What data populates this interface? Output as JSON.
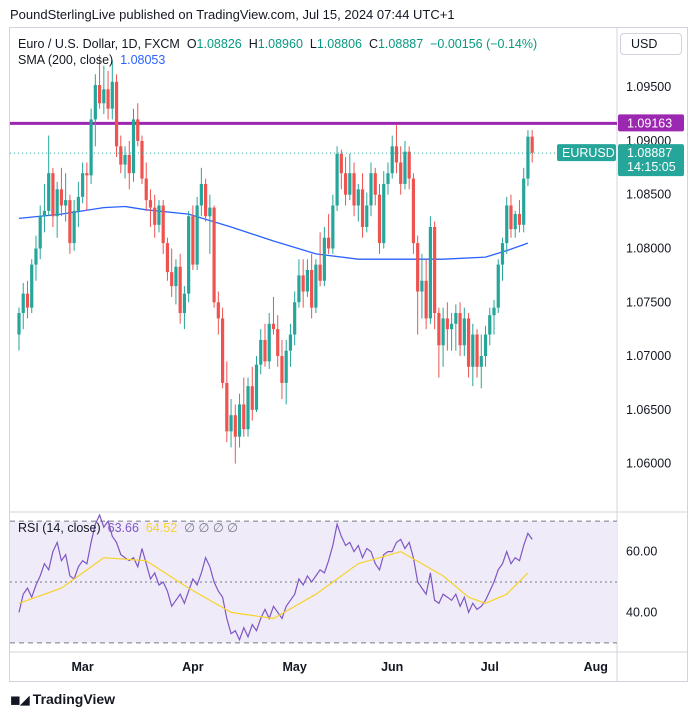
{
  "publisher": "PoundSterlingLive published on TradingView.com, Jul 15, 2024 07:44 UTC+1",
  "legend": {
    "symbol": "Euro / U.S. Dollar, 1D, FXCM",
    "o_label": "O",
    "open": "1.08826",
    "h_label": "H",
    "high": "1.08960",
    "l_label": "L",
    "low": "1.08806",
    "c_label": "C",
    "close": "1.08887",
    "change": "−0.00156 (−0.14%)",
    "sma_label": "SMA (200, close)",
    "sma_value": "1.08053"
  },
  "rsi_legend": {
    "label": "RSI (14, close)",
    "rsi": "63.66",
    "ma": "64.52",
    "zeros": "∅ ∅ ∅ ∅"
  },
  "currency_button": "USD",
  "branding": "TradingView",
  "colors": {
    "up": "#26a69a",
    "down": "#ef5350",
    "sma": "#2962ff",
    "hline": "#9c27b0",
    "rsi": "#7e57c2",
    "rsi_ma": "#f7d32a",
    "rsi_band": "#f0ebf9"
  },
  "chart_data": [
    {
      "type": "candlestick",
      "title": "Euro / U.S. Dollar, 1D, FXCM",
      "ylim": [
        1.0555,
        1.1005
      ],
      "y_ticks": [
        "1.06000",
        "1.06500",
        "1.07000",
        "1.07500",
        "1.08000",
        "1.08500",
        "1.09000",
        "1.09500"
      ],
      "x_tick_labels": [
        "Mar",
        "Apr",
        "May",
        "Jun",
        "Jul",
        "Aug"
      ],
      "x_ticks": [
        15,
        41,
        65,
        88,
        111,
        136
      ],
      "x_range": [
        0,
        141
      ],
      "horizontal_line": {
        "value": 1.09163,
        "label": "1.09163"
      },
      "last_price": {
        "symbol": "EURUSD",
        "value": "1.08887",
        "countdown": "14:15:05"
      },
      "candles": [
        [
          0,
          1.072,
          1.0745,
          1.0705,
          1.074
        ],
        [
          1,
          1.074,
          1.0768,
          1.0725,
          1.0758
        ],
        [
          2,
          1.0758,
          1.077,
          1.0735,
          1.0745
        ],
        [
          3,
          1.0745,
          1.079,
          1.074,
          1.0785
        ],
        [
          4,
          1.0785,
          1.0812,
          1.077,
          1.08
        ],
        [
          5,
          1.08,
          1.084,
          1.079,
          1.083
        ],
        [
          6,
          1.083,
          1.086,
          1.0815,
          1.0835
        ],
        [
          7,
          1.0835,
          1.0905,
          1.083,
          1.087
        ],
        [
          8,
          1.087,
          1.0875,
          1.082,
          1.083
        ],
        [
          9,
          1.083,
          1.0862,
          1.081,
          1.0855
        ],
        [
          10,
          1.0855,
          1.0875,
          1.083,
          1.084
        ],
        [
          11,
          1.084,
          1.087,
          1.0825,
          1.0845
        ],
        [
          12,
          1.0845,
          1.085,
          1.0795,
          1.0805
        ],
        [
          13,
          1.0805,
          1.0845,
          1.0798,
          1.0835
        ],
        [
          14,
          1.0835,
          1.0862,
          1.082,
          1.0848
        ],
        [
          15,
          1.0848,
          1.088,
          1.0842,
          1.087
        ],
        [
          16,
          1.087,
          1.088,
          1.0835,
          1.0868
        ],
        [
          17,
          1.0868,
          1.093,
          1.086,
          1.092
        ],
        [
          18,
          1.092,
          1.0962,
          1.0895,
          1.0952
        ],
        [
          19,
          1.0952,
          1.098,
          1.093,
          1.0935
        ],
        [
          20,
          1.0935,
          1.097,
          1.0925,
          1.0948
        ],
        [
          21,
          1.0948,
          1.0965,
          1.092,
          1.093
        ],
        [
          22,
          1.093,
          1.0975,
          1.092,
          1.0955
        ],
        [
          23,
          1.0955,
          1.0962,
          1.0885,
          1.0895
        ],
        [
          24,
          1.0895,
          1.0905,
          1.087,
          1.0878
        ],
        [
          25,
          1.0878,
          1.0895,
          1.0865,
          1.0887
        ],
        [
          26,
          1.0887,
          1.09,
          1.0855,
          1.087
        ],
        [
          27,
          1.087,
          1.093,
          1.0862,
          1.092
        ],
        [
          28,
          1.092,
          1.0935,
          1.0895,
          1.09
        ],
        [
          29,
          1.09,
          1.0905,
          1.086,
          1.0865
        ],
        [
          30,
          1.0865,
          1.088,
          1.0835,
          1.0845
        ],
        [
          31,
          1.0845,
          1.0855,
          1.082,
          1.0838
        ],
        [
          32,
          1.0838,
          1.085,
          1.081,
          1.0822
        ],
        [
          33,
          1.0822,
          1.0845,
          1.0815,
          1.084
        ],
        [
          34,
          1.084,
          1.0845,
          1.0795,
          1.0805
        ],
        [
          35,
          1.0805,
          1.081,
          1.077,
          1.0778
        ],
        [
          36,
          1.0778,
          1.08,
          1.0755,
          1.0765
        ],
        [
          37,
          1.0765,
          1.079,
          1.0748,
          1.0783
        ],
        [
          38,
          1.0783,
          1.0795,
          1.073,
          1.074
        ],
        [
          39,
          1.074,
          1.0765,
          1.0725,
          1.0758
        ],
        [
          40,
          1.0758,
          1.0835,
          1.075,
          1.083
        ],
        [
          41,
          1.083,
          1.084,
          1.078,
          1.0785
        ],
        [
          42,
          1.0785,
          1.0848,
          1.078,
          1.084
        ],
        [
          43,
          1.084,
          1.0875,
          1.083,
          1.086
        ],
        [
          44,
          1.086,
          1.0865,
          1.0825,
          1.083
        ],
        [
          45,
          1.083,
          1.085,
          1.0795,
          1.0838
        ],
        [
          46,
          1.0838,
          1.084,
          1.0745,
          1.075
        ],
        [
          47,
          1.075,
          1.076,
          1.072,
          1.0735
        ],
        [
          48,
          1.0735,
          1.0745,
          1.067,
          1.0675
        ],
        [
          49,
          1.0675,
          1.0695,
          1.062,
          1.063
        ],
        [
          50,
          1.063,
          1.066,
          1.0615,
          1.0645
        ],
        [
          51,
          1.0645,
          1.0655,
          1.06,
          1.0625
        ],
        [
          52,
          1.0625,
          1.0665,
          1.0615,
          1.0655
        ],
        [
          53,
          1.0655,
          1.068,
          1.0625,
          1.0632
        ],
        [
          54,
          1.0632,
          1.068,
          1.0625,
          1.0672
        ],
        [
          55,
          1.0672,
          1.069,
          1.064,
          1.065
        ],
        [
          56,
          1.065,
          1.07,
          1.0648,
          1.0692
        ],
        [
          57,
          1.0692,
          1.0725,
          1.0683,
          1.0715
        ],
        [
          58,
          1.0715,
          1.073,
          1.069,
          1.0695
        ],
        [
          59,
          1.0695,
          1.074,
          1.0688,
          1.073
        ],
        [
          60,
          1.073,
          1.0755,
          1.072,
          1.0725
        ],
        [
          61,
          1.0725,
          1.0738,
          1.069,
          1.07
        ],
        [
          62,
          1.07,
          1.0715,
          1.066,
          1.0675
        ],
        [
          63,
          1.0675,
          1.0715,
          1.0655,
          1.0705
        ],
        [
          64,
          1.0705,
          1.073,
          1.069,
          1.072
        ],
        [
          65,
          1.072,
          1.076,
          1.071,
          1.075
        ],
        [
          66,
          1.075,
          1.079,
          1.0745,
          1.0775
        ],
        [
          67,
          1.0775,
          1.079,
          1.0745,
          1.076
        ],
        [
          68,
          1.076,
          1.079,
          1.0755,
          1.078
        ],
        [
          69,
          1.078,
          1.0795,
          1.0735,
          1.0745
        ],
        [
          70,
          1.0745,
          1.079,
          1.074,
          1.0785
        ],
        [
          71,
          1.0785,
          1.0815,
          1.0765,
          1.077
        ],
        [
          72,
          1.077,
          1.082,
          1.0765,
          1.081
        ],
        [
          73,
          1.081,
          1.0832,
          1.0795,
          1.08
        ],
        [
          74,
          1.08,
          1.085,
          1.0795,
          1.084
        ],
        [
          75,
          1.084,
          1.0895,
          1.0835,
          1.0888
        ],
        [
          76,
          1.0888,
          1.0892,
          1.0855,
          1.087
        ],
        [
          77,
          1.087,
          1.0885,
          1.084,
          1.085
        ],
        [
          78,
          1.085,
          1.0888,
          1.0845,
          1.087
        ],
        [
          79,
          1.087,
          1.088,
          1.083,
          1.084
        ],
        [
          80,
          1.084,
          1.086,
          1.0825,
          1.0855
        ],
        [
          81,
          1.0855,
          1.087,
          1.081,
          1.082
        ],
        [
          82,
          1.082,
          1.0852,
          1.0815,
          1.084
        ],
        [
          83,
          1.084,
          1.088,
          1.083,
          1.087
        ],
        [
          84,
          1.087,
          1.0875,
          1.084,
          1.085
        ],
        [
          85,
          1.085,
          1.086,
          1.0795,
          1.0805
        ],
        [
          86,
          1.0805,
          1.0872,
          1.08,
          1.086
        ],
        [
          87,
          1.086,
          1.088,
          1.085,
          1.087
        ],
        [
          88,
          1.087,
          1.0905,
          1.0865,
          1.0895
        ],
        [
          89,
          1.0895,
          1.0915,
          1.087,
          1.088
        ],
        [
          90,
          1.088,
          1.0895,
          1.085,
          1.086
        ],
        [
          91,
          1.086,
          1.09,
          1.0855,
          1.089
        ],
        [
          92,
          1.089,
          1.0895,
          1.0855,
          1.0865
        ],
        [
          93,
          1.0865,
          1.087,
          1.0795,
          1.0805
        ],
        [
          94,
          1.0805,
          1.0812,
          1.072,
          1.076
        ],
        [
          95,
          1.076,
          1.0795,
          1.0735,
          1.077
        ],
        [
          96,
          1.077,
          1.079,
          1.0725,
          1.0735
        ],
        [
          97,
          1.0735,
          1.083,
          1.073,
          1.082
        ],
        [
          98,
          1.082,
          1.0825,
          1.0725,
          1.074
        ],
        [
          99,
          1.074,
          1.0745,
          1.068,
          1.071
        ],
        [
          100,
          1.071,
          1.0745,
          1.069,
          1.0735
        ],
        [
          101,
          1.0735,
          1.075,
          1.0705,
          1.0725
        ],
        [
          102,
          1.0725,
          1.074,
          1.0705,
          1.073
        ],
        [
          103,
          1.073,
          1.0748,
          1.0705,
          1.074
        ],
        [
          104,
          1.074,
          1.075,
          1.07,
          1.071
        ],
        [
          105,
          1.071,
          1.0745,
          1.07,
          1.0735
        ],
        [
          106,
          1.0735,
          1.074,
          1.068,
          1.069
        ],
        [
          107,
          1.069,
          1.073,
          1.0672,
          1.072
        ],
        [
          108,
          1.072,
          1.0725,
          1.068,
          1.069
        ],
        [
          109,
          1.069,
          1.072,
          1.067,
          1.07
        ],
        [
          110,
          1.07,
          1.0728,
          1.069,
          1.072
        ],
        [
          111,
          1.072,
          1.0745,
          1.071,
          1.0738
        ],
        [
          112,
          1.0738,
          1.0752,
          1.072,
          1.0745
        ],
        [
          113,
          1.0745,
          1.079,
          1.074,
          1.0785
        ],
        [
          114,
          1.0785,
          1.081,
          1.077,
          1.0805
        ],
        [
          115,
          1.0805,
          1.0848,
          1.0795,
          1.084
        ],
        [
          116,
          1.084,
          1.085,
          1.081,
          1.0818
        ],
        [
          117,
          1.0818,
          1.0835,
          1.081,
          1.0832
        ],
        [
          118,
          1.0832,
          1.0845,
          1.0815,
          1.0822
        ],
        [
          119,
          1.0822,
          1.0875,
          1.0815,
          1.0865
        ],
        [
          120,
          1.0865,
          1.091,
          1.0858,
          1.0904
        ],
        [
          121,
          1.0904,
          1.091,
          1.088,
          1.0889
        ]
      ],
      "sma_series": {
        "name": "SMA (200, close)",
        "x": [
          0,
          10,
          20,
          25,
          30,
          40,
          50,
          60,
          70,
          80,
          90,
          100,
          110,
          115,
          120
        ],
        "values": [
          1.0828,
          1.0832,
          1.0838,
          1.0839,
          1.0836,
          1.0832,
          1.082,
          1.0807,
          1.0795,
          1.079,
          1.079,
          1.079,
          1.0792,
          1.0798,
          1.0805
        ]
      }
    },
    {
      "type": "line",
      "title": "RSI (14, close)",
      "ylim": [
        27,
        73
      ],
      "y_ticks": [
        "40.00",
        "60.00"
      ],
      "levels": [
        70,
        50,
        30
      ],
      "series": [
        {
          "name": "RSI",
          "x_start": 0,
          "values": [
            40,
            46,
            48,
            45,
            49,
            52,
            56,
            54,
            60,
            63,
            57,
            59,
            52,
            51,
            55,
            57,
            56,
            63,
            69,
            72,
            68,
            70,
            65,
            63,
            59,
            58,
            57,
            58,
            55,
            61,
            56,
            51,
            53,
            49,
            50,
            47,
            42,
            44,
            46,
            43,
            47,
            51,
            49,
            53,
            58,
            55,
            50,
            47,
            45,
            38,
            33,
            34,
            31,
            35,
            32,
            36,
            34,
            38,
            41,
            38,
            42,
            40,
            38,
            42,
            44,
            46,
            51,
            49,
            52,
            50,
            52,
            54,
            53,
            57,
            62,
            69,
            65,
            62,
            63,
            60,
            62,
            58,
            61,
            60,
            56,
            54,
            59,
            60,
            60,
            63,
            64,
            61,
            63,
            58,
            50,
            48,
            46,
            53,
            44,
            43,
            46,
            45,
            44,
            46,
            42,
            45,
            40,
            43,
            41,
            42,
            44,
            47,
            50,
            54,
            56,
            60,
            56,
            58,
            57,
            62,
            66,
            64
          ]
        },
        {
          "name": "RSI-based MA",
          "x": [
            0,
            10,
            20,
            30,
            40,
            50,
            60,
            70,
            80,
            90,
            100,
            106,
            110,
            115,
            120
          ],
          "values": [
            43,
            48,
            58,
            57,
            48,
            40,
            38,
            46,
            56,
            60,
            52,
            45,
            43,
            46,
            53
          ]
        }
      ]
    }
  ]
}
